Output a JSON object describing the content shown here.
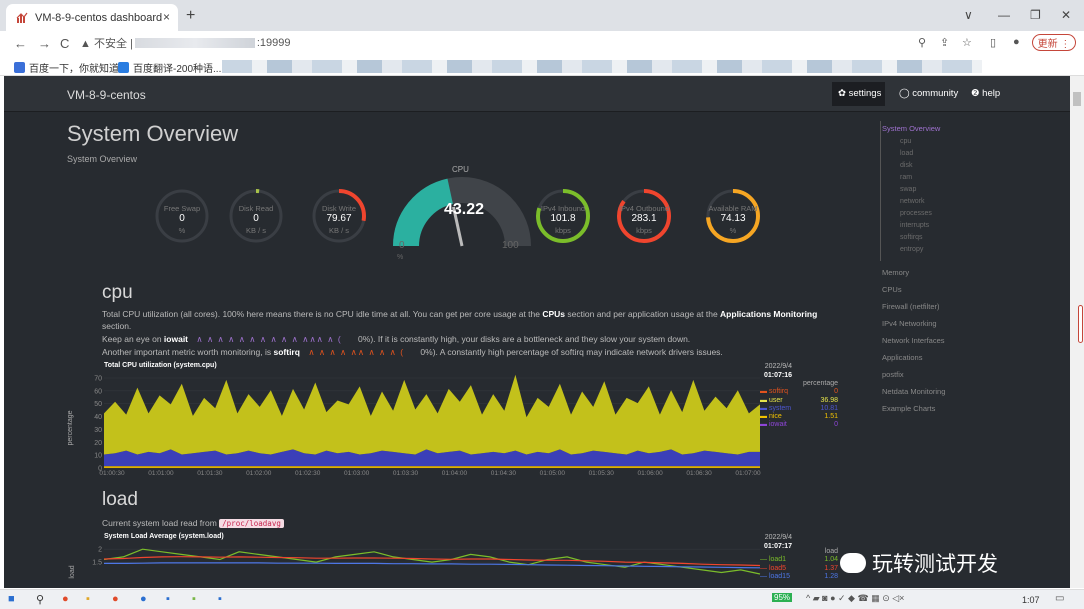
{
  "browser": {
    "tab_title": "VM-8-9-centos dashboard",
    "close": "×",
    "new_tab": "+",
    "nav": {
      "back": "←",
      "forward": "→",
      "reload": "C"
    },
    "security": "▲ 不安全 |",
    "address_port": ":19999",
    "update_label": "更新 ⋮",
    "window_controls": [
      "∨",
      "—",
      "❐",
      "✕"
    ],
    "toolbar_icons": [
      "⚲",
      "⇪",
      "☆",
      "▯",
      "●"
    ],
    "bookmarks": [
      {
        "label": "百度一下，你就知道",
        "color": "#3b6fd8"
      },
      {
        "label": "百度翻译-200种语...",
        "color": "#2a7de1"
      }
    ]
  },
  "navbar": {
    "brand": "VM-8-9-centos",
    "settings": "✿ settings",
    "community": "◯ community",
    "help": "❷ help"
  },
  "header": {
    "title": "System Overview",
    "subtitle": "System Overview"
  },
  "gauges": [
    {
      "label": "Free Swap",
      "value": "0",
      "unit": "%",
      "pct": 0,
      "color": "#777"
    },
    {
      "label": "Disk Read",
      "value": "0",
      "unit": "KB / s",
      "pct": 0.02,
      "color": "#a8c34a"
    },
    {
      "label": "Disk Write",
      "value": "79.67",
      "unit": "KB / s",
      "pct": 0.28,
      "color": "#f0452e"
    },
    {
      "label": "IPv4 Inbound",
      "value": "101.8",
      "unit": "kbps",
      "pct": 0.8,
      "color": "#7bbd2a"
    },
    {
      "label": "IPv4 Outbound",
      "value": "283.1",
      "unit": "kbps",
      "pct": 0.85,
      "color": "#f0452e"
    },
    {
      "label": "Available RAM",
      "value": "74.13",
      "unit": "%",
      "pct": 0.74,
      "color": "#f6a623"
    }
  ],
  "cpu_gauge": {
    "label": "CPU",
    "value": "43.22",
    "min": "0",
    "max": "100",
    "unit": "%",
    "pct": 0.4322,
    "color": "#2bb0a0"
  },
  "cpu_section": {
    "name": "cpu",
    "p1": "Total CPU utilization (all cores). 100% here means there is no CPU idle time at all. You can get per core usage at the ",
    "p1_link1": "CPUs",
    "p1_mid": " section and per application usage at the ",
    "p1_link2": "Applications Monitoring",
    "p1_end": "section.",
    "p2_start": "Keep an eye on ",
    "p2_bold": "iowait",
    "p2_spark": "∧ ∧ ∧ ∧ ∧ ∧ ∧ ∧ ∧ ∧ ∧∧∧ ∧ (",
    "p2_end": "0%). If it is constantly high, your disks are a bottleneck and they slow your system down.",
    "p3_start": "Another important metric worth monitoring, is ",
    "p3_bold": "softirq",
    "p3_spark": "∧ ∧ ∧ ∧ ∧∧ ∧ ∧ ∧ (",
    "p3_end": "0%). A constantly high percentage of softirq may indicate network drivers issues.",
    "chart_title": "Total CPU utilization (system.cpu)",
    "date": "2022/9/4",
    "time": "01:07:16",
    "ylabel": "percentage",
    "legend_title": "percentage",
    "legend": [
      {
        "name": "softirq",
        "value": "0",
        "color": "#e2531e"
      },
      {
        "name": "user",
        "value": "36.98",
        "color": "#e6e44a"
      },
      {
        "name": "system",
        "value": "10.81",
        "color": "#4d57d0"
      },
      {
        "name": "nice",
        "value": "1.51",
        "color": "#f2c200"
      },
      {
        "name": "iowait",
        "value": "0",
        "color": "#8e45d8"
      }
    ]
  },
  "load_section": {
    "name": "load",
    "p1": "Current system load read from ",
    "code": "/proc/loadavg",
    "chart_title": "System Load Average (system.load)",
    "date": "2022/9/4",
    "time": "01:07:17",
    "ylabel": "load",
    "legend_title": "load",
    "legend": [
      {
        "name": "load1",
        "value": "1.04",
        "color": "#7bbd2a"
      },
      {
        "name": "load5",
        "value": "1.37",
        "color": "#f0452e"
      },
      {
        "name": "load15",
        "value": "1.28",
        "color": "#4d76e6"
      }
    ]
  },
  "right_nav": {
    "active": "System Overview",
    "sub": [
      "cpu",
      "load",
      "disk",
      "ram",
      "swap",
      "network",
      "processes",
      "interrupts",
      "softirqs",
      "entropy"
    ],
    "top": [
      "Memory",
      "CPUs",
      "Firewall (netfilter)",
      "IPv4 Networking",
      "Network Interfaces",
      "Applications",
      "postfix",
      "Netdata Monitoring",
      "Example Charts"
    ]
  },
  "watermark": "玩转测试开发",
  "taskbar": {
    "time": "1:07",
    "battery": "95%"
  },
  "chart_data": [
    {
      "type": "area",
      "title": "Total CPU utilization (system.cpu)",
      "ylabel": "percentage",
      "ylim": [
        0,
        70
      ],
      "yticks": [
        "0",
        "10",
        "20",
        "30",
        "40",
        "50",
        "60",
        "70"
      ],
      "xticks": [
        "01:00:30",
        "01:01:00",
        "01:01:30",
        "01:02:00",
        "01:02:30",
        "01:03:00",
        "01:03:30",
        "01:04:00",
        "01:04:30",
        "01:05:00",
        "01:05:30",
        "01:06:00",
        "01:06:30",
        "01:07:00"
      ],
      "series": [
        {
          "name": "iowait",
          "values": [
            0,
            0,
            0,
            0,
            0,
            0,
            0,
            0,
            0,
            0,
            0,
            0,
            0,
            0,
            0,
            0,
            0,
            0,
            0,
            0,
            0,
            0,
            0,
            0,
            0,
            0,
            0,
            0,
            0,
            0,
            0,
            0,
            0,
            0,
            0,
            0,
            0,
            0,
            0,
            0,
            0,
            0,
            0,
            0,
            0,
            0,
            0,
            0,
            0,
            0,
            0,
            0,
            0,
            0,
            0,
            0,
            0,
            0,
            0,
            0
          ]
        },
        {
          "name": "nice",
          "values": [
            1.5,
            1.5,
            1.5,
            1.5,
            1.5,
            1.5,
            1.5,
            1.5,
            1.5,
            1.5,
            1.5,
            1.5,
            1.5,
            1.5,
            1.5,
            1.5,
            1.5,
            1.5,
            1.5,
            1.5,
            1.5,
            1.5,
            1.5,
            1.5,
            1.5,
            1.5,
            1.5,
            1.5,
            1.5,
            1.5,
            1.5,
            1.5,
            1.5,
            1.5,
            1.5,
            1.5,
            1.5,
            1.5,
            1.5,
            1.5,
            1.5,
            1.5,
            1.5,
            1.5,
            1.5,
            1.5,
            1.5,
            1.5,
            1.5,
            1.5,
            1.5,
            1.5,
            1.5,
            1.5,
            1.5,
            1.5,
            1.5,
            1.5,
            1.5,
            1.5
          ]
        },
        {
          "name": "system",
          "values": [
            9,
            10,
            12,
            9,
            11,
            10,
            13,
            9,
            10,
            11,
            12,
            9,
            10,
            12,
            10,
            9,
            11,
            13,
            10,
            9,
            12,
            10,
            11,
            9,
            10,
            12,
            11,
            10,
            9,
            13,
            10,
            11,
            12,
            9,
            10,
            11,
            10,
            12,
            9,
            11,
            10,
            13,
            9,
            10,
            12,
            11,
            10,
            9,
            12,
            10,
            11,
            13,
            9,
            10,
            12,
            11,
            10,
            9,
            11,
            11
          ]
        },
        {
          "name": "user",
          "values": [
            32,
            40,
            28,
            52,
            30,
            45,
            35,
            55,
            29,
            42,
            33,
            58,
            31,
            44,
            36,
            50,
            28,
            47,
            34,
            56,
            30,
            41,
            37,
            53,
            29,
            46,
            32,
            57,
            35,
            43,
            31,
            49,
            38,
            54,
            30,
            45,
            33,
            59,
            29,
            42,
            36,
            51,
            31,
            48,
            34,
            55,
            30,
            44,
            37,
            52,
            29,
            46,
            33,
            57,
            31,
            43,
            35,
            50,
            30,
            37
          ]
        },
        {
          "name": "softirq",
          "values": [
            0,
            0,
            0,
            0,
            0,
            0,
            0,
            0,
            0,
            0,
            0,
            0,
            0,
            0,
            0,
            0,
            0,
            0,
            0,
            0,
            0,
            0,
            0,
            0,
            0,
            0,
            0,
            0,
            0,
            0,
            0,
            0,
            0,
            0,
            0,
            0,
            0,
            0,
            0,
            0,
            0,
            0,
            0,
            0,
            0,
            0,
            0,
            0,
            0,
            0,
            0,
            0,
            0,
            0,
            0,
            0,
            0,
            0,
            0,
            0
          ]
        }
      ]
    },
    {
      "type": "line",
      "title": "System Load Average (system.load)",
      "ylabel": "load",
      "ylim": [
        0.5,
        2.2
      ],
      "yticks": [
        "1.5",
        "2"
      ],
      "series": [
        {
          "name": "load1",
          "values": [
            1.6,
            1.7,
            2.0,
            1.9,
            1.8,
            1.7,
            1.6,
            1.9,
            1.8,
            1.7,
            1.6,
            1.5,
            1.7,
            1.8,
            1.9,
            1.7,
            1.6,
            1.5,
            1.6,
            1.8,
            1.7,
            1.5,
            1.4,
            1.6,
            1.7,
            1.5,
            1.4,
            1.3,
            1.5,
            1.4,
            1.3,
            1.2,
            1.1,
            1.2,
            1.04
          ]
        },
        {
          "name": "load5",
          "values": [
            1.62,
            1.64,
            1.68,
            1.7,
            1.71,
            1.7,
            1.69,
            1.7,
            1.69,
            1.68,
            1.67,
            1.65,
            1.65,
            1.66,
            1.66,
            1.65,
            1.64,
            1.62,
            1.61,
            1.62,
            1.62,
            1.6,
            1.58,
            1.57,
            1.57,
            1.55,
            1.53,
            1.5,
            1.49,
            1.47,
            1.45,
            1.42,
            1.4,
            1.39,
            1.37
          ]
        },
        {
          "name": "load15",
          "values": [
            1.45,
            1.45,
            1.46,
            1.47,
            1.47,
            1.47,
            1.47,
            1.47,
            1.47,
            1.46,
            1.46,
            1.46,
            1.45,
            1.45,
            1.45,
            1.44,
            1.44,
            1.43,
            1.43,
            1.42,
            1.42,
            1.41,
            1.4,
            1.39,
            1.38,
            1.37,
            1.36,
            1.35,
            1.34,
            1.33,
            1.32,
            1.31,
            1.3,
            1.29,
            1.28
          ]
        }
      ]
    }
  ]
}
